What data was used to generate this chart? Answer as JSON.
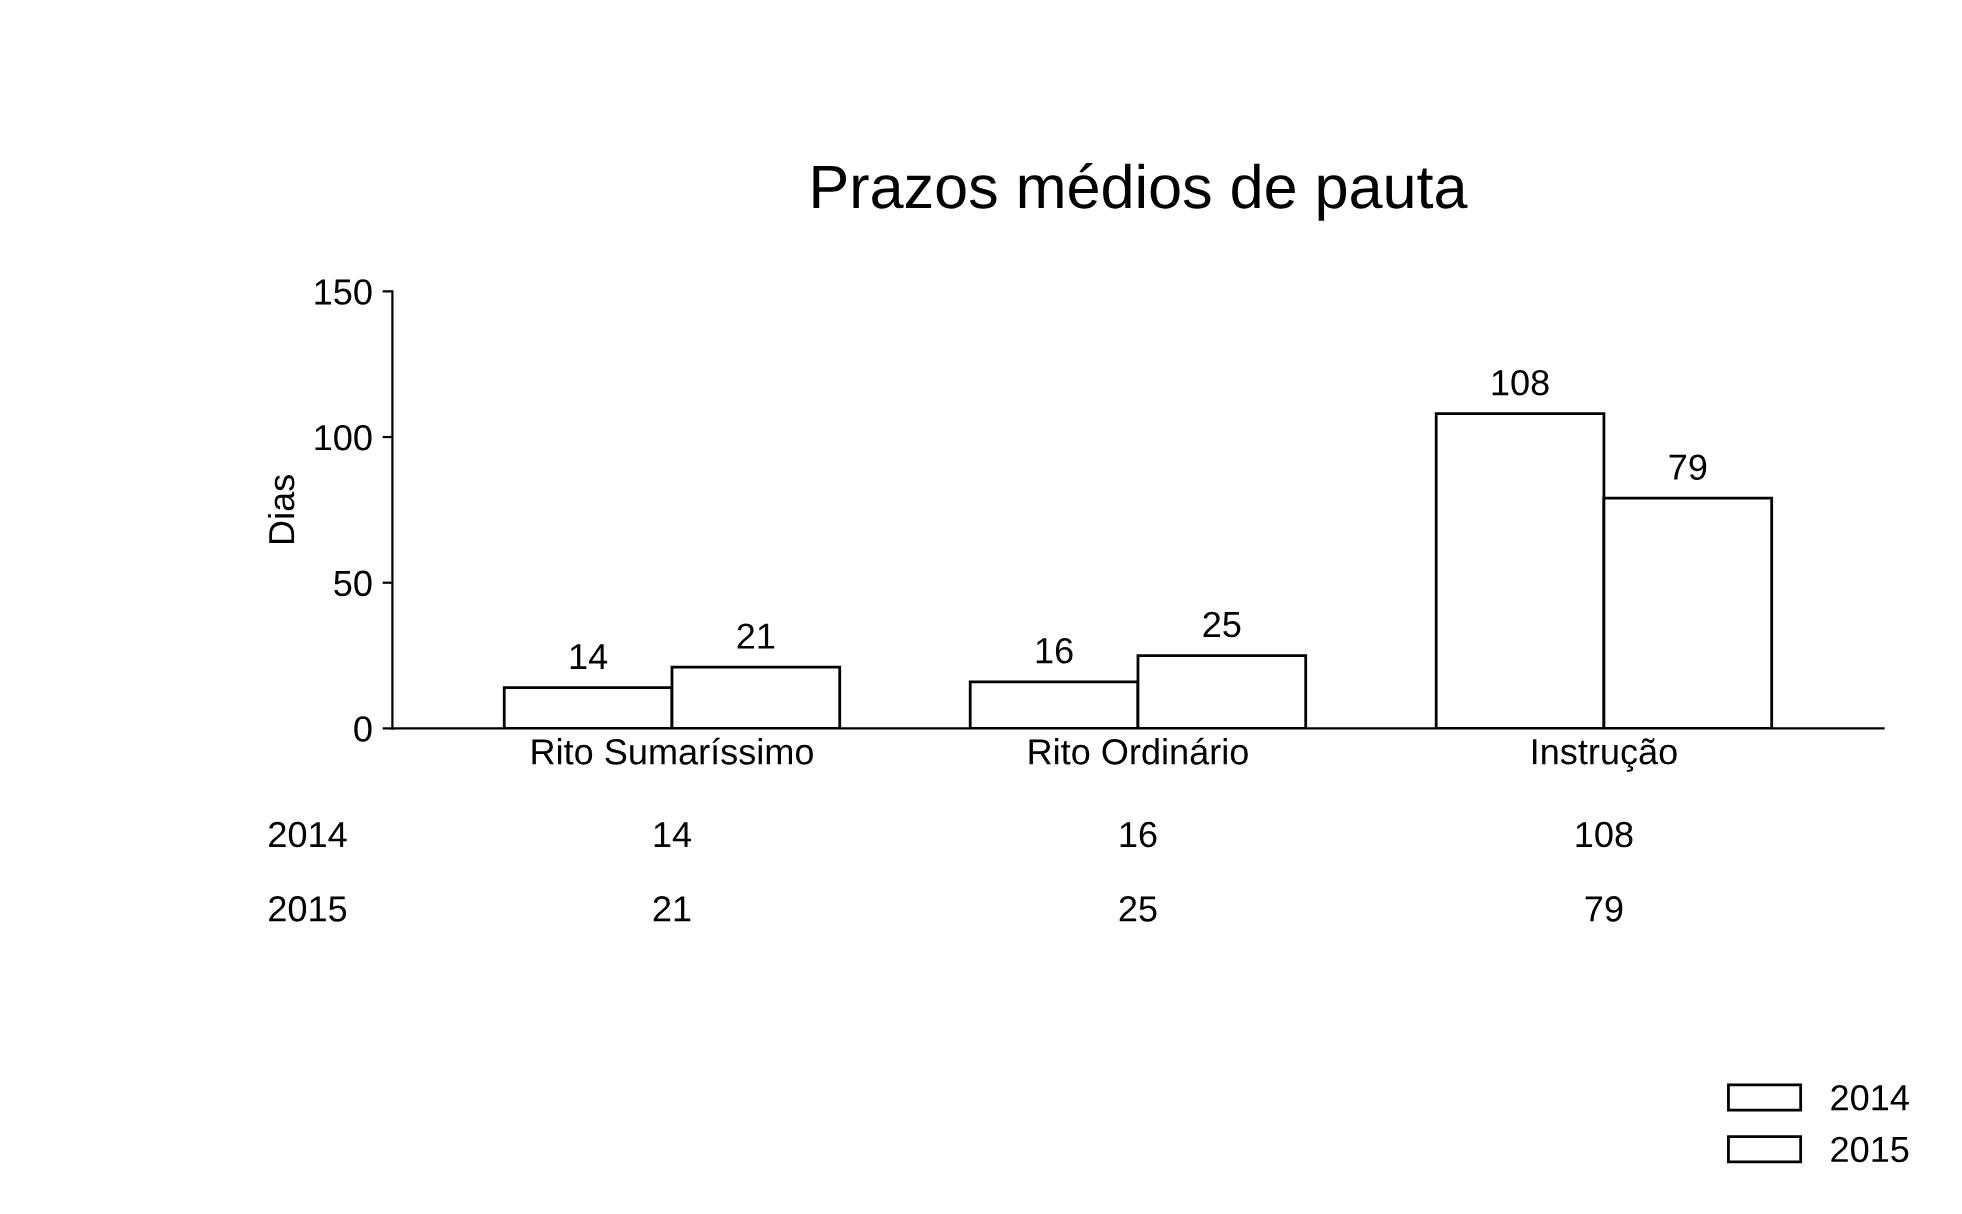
{
  "chart_data": {
    "type": "bar",
    "title": "Prazos médios de pauta",
    "ylabel": "Dias",
    "categories": [
      "Rito Sumaríssimo",
      "Rito Ordinário",
      "Instrução"
    ],
    "series": [
      {
        "name": "2014",
        "color": "#ffffff",
        "values": [
          14,
          16,
          108
        ]
      },
      {
        "name": "2015",
        "color": "#ffffff",
        "values": [
          21,
          25,
          79
        ]
      }
    ],
    "annotations": [
      "14",
      "16",
      "108",
      "21",
      "25",
      "79"
    ],
    "ylim": [
      0,
      150
    ],
    "yticks": [
      0,
      50,
      100,
      150
    ],
    "grid": false,
    "data_labels": true,
    "legend": "bottom right"
  }
}
